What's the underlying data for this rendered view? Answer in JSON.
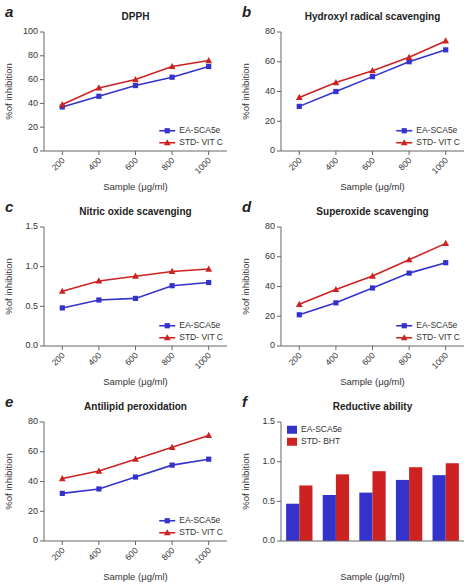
{
  "chart_data": [
    {
      "type": "line",
      "title": "DPPH",
      "annotations": [
        "a"
      ],
      "x_label": "Sample (μg/ml)",
      "y_label": "%of inhibition",
      "x": [
        200,
        400,
        600,
        800,
        1000
      ],
      "xlim": [
        100,
        1100
      ],
      "xticks": [
        200,
        400,
        600,
        800,
        1000
      ],
      "ylim": [
        0,
        100
      ],
      "yticks": [
        0,
        20,
        40,
        60,
        80,
        100
      ],
      "series": [
        {
          "name": "EA-SCA5e",
          "color": "#3333cc",
          "marker": "square",
          "values": [
            37,
            46,
            55,
            62,
            71
          ]
        },
        {
          "name": "STD- VIT C",
          "color": "#cc2222",
          "marker": "triangle",
          "values": [
            39,
            53,
            60,
            71,
            76
          ]
        }
      ],
      "legend": "lower right",
      "grid": false
    },
    {
      "type": "line",
      "title": "Hydroxyl radical scavenging",
      "annotations": [
        "b"
      ],
      "x_label": "Sample (μg/ml)",
      "y_label": "%of inhibition",
      "x": [
        200,
        400,
        600,
        800,
        1000
      ],
      "xlim": [
        100,
        1100
      ],
      "xticks": [
        200,
        400,
        600,
        800,
        1000
      ],
      "ylim": [
        0,
        80
      ],
      "yticks": [
        0,
        20,
        40,
        60,
        80
      ],
      "series": [
        {
          "name": "EA-SCA5e",
          "color": "#3333cc",
          "marker": "square",
          "values": [
            30,
            40,
            50,
            60,
            68
          ]
        },
        {
          "name": "STD- VIT C",
          "color": "#cc2222",
          "marker": "triangle",
          "values": [
            36,
            46,
            54,
            63,
            74
          ]
        }
      ],
      "legend": "lower right",
      "grid": false
    },
    {
      "type": "line",
      "title": "Nitric oxide scavenging",
      "annotations": [
        "c"
      ],
      "x_label": "Sample (μg/ml)",
      "y_label": "%of inhibition",
      "x": [
        200,
        400,
        600,
        800,
        1000
      ],
      "xlim": [
        100,
        1100
      ],
      "xticks": [
        200,
        400,
        600,
        800,
        1000
      ],
      "ylim": [
        0,
        1.5
      ],
      "yticks": [
        {
          "value": 0,
          "label": "0.0"
        },
        0.5,
        {
          "value": 1,
          "label": "1.0"
        },
        1.5
      ],
      "series": [
        {
          "name": "EA-SCA5e",
          "color": "#3333cc",
          "marker": "square",
          "values": [
            0.48,
            0.58,
            0.6,
            0.76,
            0.8
          ]
        },
        {
          "name": "STD- VIT C",
          "color": "#cc2222",
          "marker": "triangle",
          "values": [
            0.69,
            0.82,
            0.88,
            0.94,
            0.97
          ]
        }
      ],
      "legend": "lower right",
      "grid": false
    },
    {
      "type": "line",
      "title": "Superoxide scavenging",
      "annotations": [
        "d"
      ],
      "x_label": "Sample (μg/ml)",
      "y_label": "%of inhibition",
      "x": [
        200,
        400,
        600,
        800,
        1000
      ],
      "xlim": [
        100,
        1100
      ],
      "xticks": [
        200,
        400,
        600,
        800,
        1000
      ],
      "ylim": [
        0,
        80
      ],
      "yticks": [
        0,
        20,
        40,
        60,
        80
      ],
      "series": [
        {
          "name": "EA-SCA5e",
          "color": "#3333cc",
          "marker": "square",
          "values": [
            21,
            29,
            39,
            49,
            56
          ]
        },
        {
          "name": "STD- VIT C",
          "color": "#cc2222",
          "marker": "triangle",
          "values": [
            28,
            38,
            47,
            58,
            69
          ]
        }
      ],
      "legend": "lower right",
      "grid": false
    },
    {
      "type": "line",
      "title": "Antilipid peroxidation",
      "annotations": [
        "e"
      ],
      "x_label": "Sample (μg/ml)",
      "y_label": "%of inhibition",
      "x": [
        200,
        400,
        600,
        800,
        1000
      ],
      "xlim": [
        100,
        1100
      ],
      "xticks": [
        200,
        400,
        600,
        800,
        1000
      ],
      "ylim": [
        0,
        80
      ],
      "yticks": [
        0,
        20,
        40,
        60,
        80
      ],
      "series": [
        {
          "name": "EA-SCA5e",
          "color": "#3333cc",
          "marker": "square",
          "values": [
            32,
            35,
            43,
            51,
            55
          ]
        },
        {
          "name": "STD- VIT C",
          "color": "#cc2222",
          "marker": "triangle",
          "values": [
            42,
            47,
            55,
            63,
            71
          ]
        }
      ],
      "legend": "lower right",
      "grid": false
    },
    {
      "type": "bar",
      "title": "Reductive ability",
      "annotations": [
        "f"
      ],
      "x_label": "Sample (μg/ml)",
      "y_label": "%of inhibition",
      "categories": [
        null,
        null,
        null,
        null,
        null
      ],
      "tick_labels": "y",
      "ylim": [
        0,
        1.5
      ],
      "yticks": [
        {
          "value": 0,
          "label": "0.0"
        },
        0.5,
        {
          "value": 1,
          "label": "1.0"
        },
        1.5
      ],
      "series": [
        {
          "name": "EA-SCA5e",
          "color": "#3333cc",
          "values": [
            0.47,
            0.58,
            0.61,
            0.77,
            0.83
          ]
        },
        {
          "name": "STD- BHT",
          "color": "#cc2222",
          "values": [
            0.7,
            0.84,
            0.88,
            0.93,
            0.98
          ]
        }
      ],
      "legend": "upper left",
      "grid": false
    }
  ]
}
